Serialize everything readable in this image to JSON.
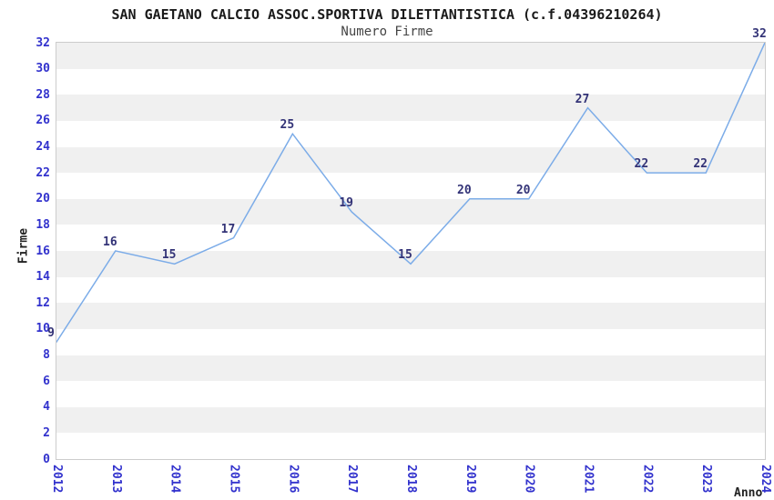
{
  "chart_data": {
    "type": "line",
    "title": "SAN GAETANO CALCIO ASSOC.SPORTIVA DILETTANTISTICA (c.f.04396210264)",
    "subtitle": "Numero Firme",
    "xlabel": "Anno",
    "ylabel": "Firme",
    "categories": [
      "2012",
      "2013",
      "2014",
      "2015",
      "2016",
      "2017",
      "2018",
      "2019",
      "2020",
      "2021",
      "2022",
      "2023",
      "2024"
    ],
    "values": [
      9,
      16,
      15,
      17,
      25,
      19,
      15,
      20,
      20,
      27,
      22,
      22,
      32
    ],
    "ylim": [
      0,
      32
    ],
    "yticks": [
      0,
      2,
      4,
      6,
      8,
      10,
      12,
      14,
      16,
      18,
      20,
      22,
      24,
      26,
      28,
      30,
      32
    ],
    "ytick_step": 2,
    "grid": "alternating horizontal bands every 2 units",
    "legend": "none",
    "markers": "none",
    "data_labels_shown": true,
    "colors": {
      "line": "#7cace8",
      "tick_label": "#3232cd",
      "data_label": "#333377",
      "band": "#f0f0f0",
      "plot_border": "#cccccc",
      "title": "#1a1a1a",
      "subtitle": "#444444",
      "axis_title": "#222222",
      "background": "#ffffff"
    }
  }
}
